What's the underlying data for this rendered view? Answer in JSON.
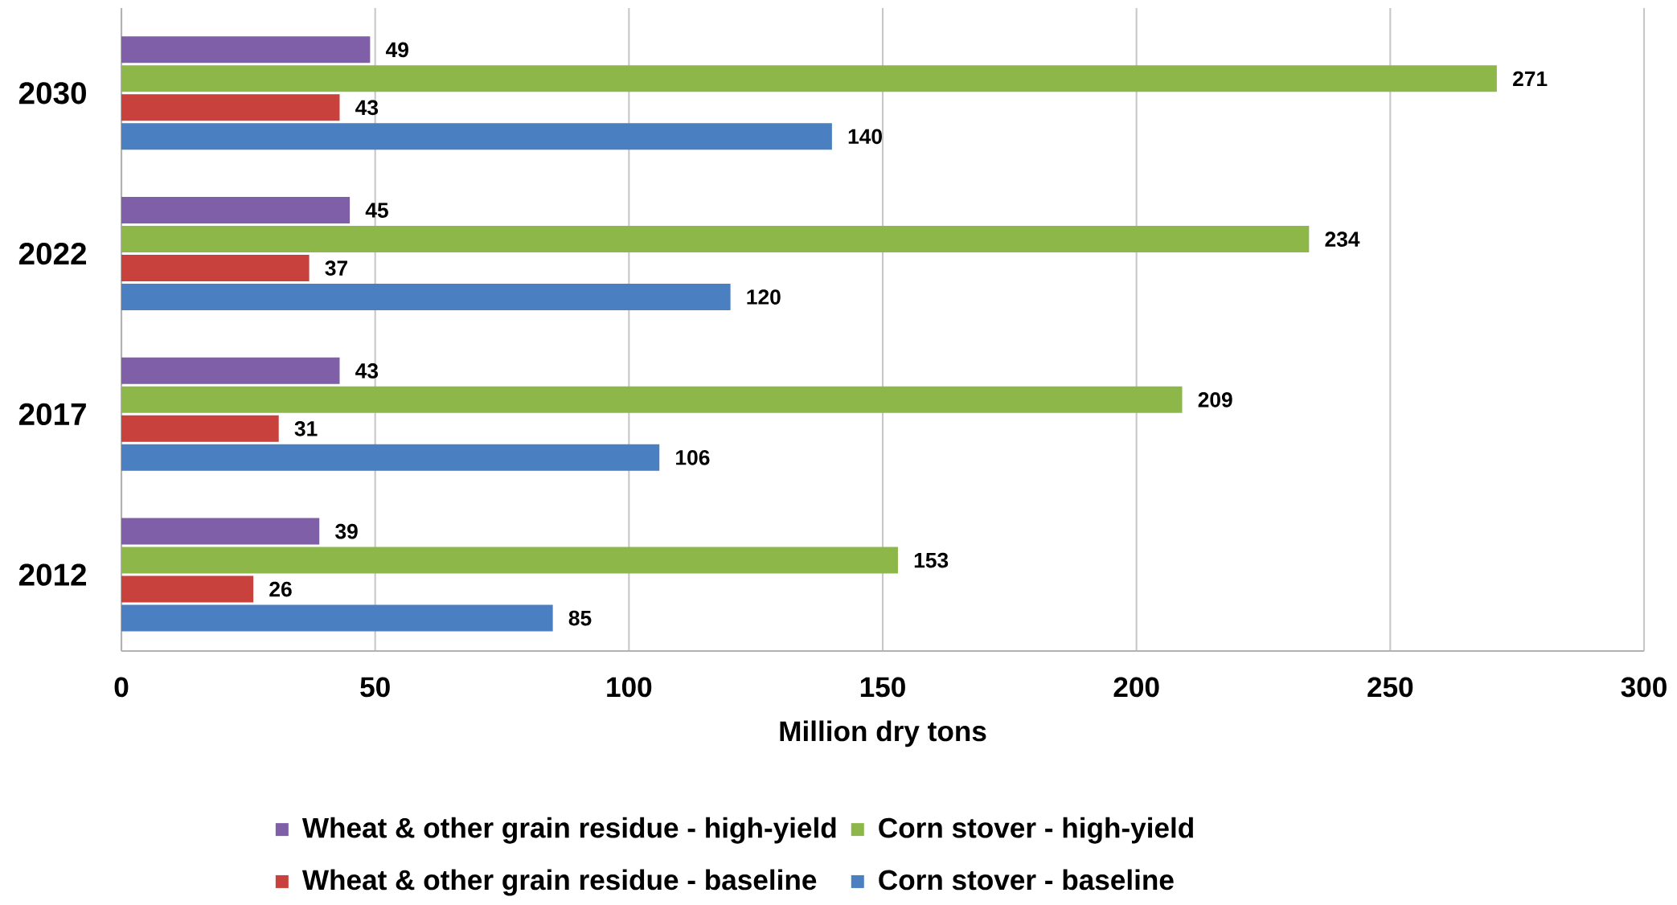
{
  "chart_data": {
    "type": "bar",
    "orientation": "horizontal",
    "xlabel": "Million dry tons",
    "categories": [
      "2030",
      "2022",
      "2017",
      "2012"
    ],
    "series": [
      {
        "name": "Wheat & other grain residue - high-yield",
        "color": "#7f5fa8",
        "values": [
          49,
          45,
          43,
          39
        ]
      },
      {
        "name": "Corn stover - high-yield",
        "color": "#8db849",
        "values": [
          271,
          234,
          209,
          153
        ]
      },
      {
        "name": "Wheat & other grain residue - baseline",
        "color": "#c9413c",
        "values": [
          43,
          37,
          31,
          26
        ]
      },
      {
        "name": "Corn stover - baseline",
        "color": "#4a7fc1",
        "values": [
          140,
          120,
          106,
          85
        ]
      }
    ],
    "xlim": [
      0,
      300
    ],
    "xticks": [
      0,
      50,
      100,
      150,
      200,
      250,
      300
    ],
    "grid": "x",
    "legend": "bottom",
    "data_labels": true
  }
}
